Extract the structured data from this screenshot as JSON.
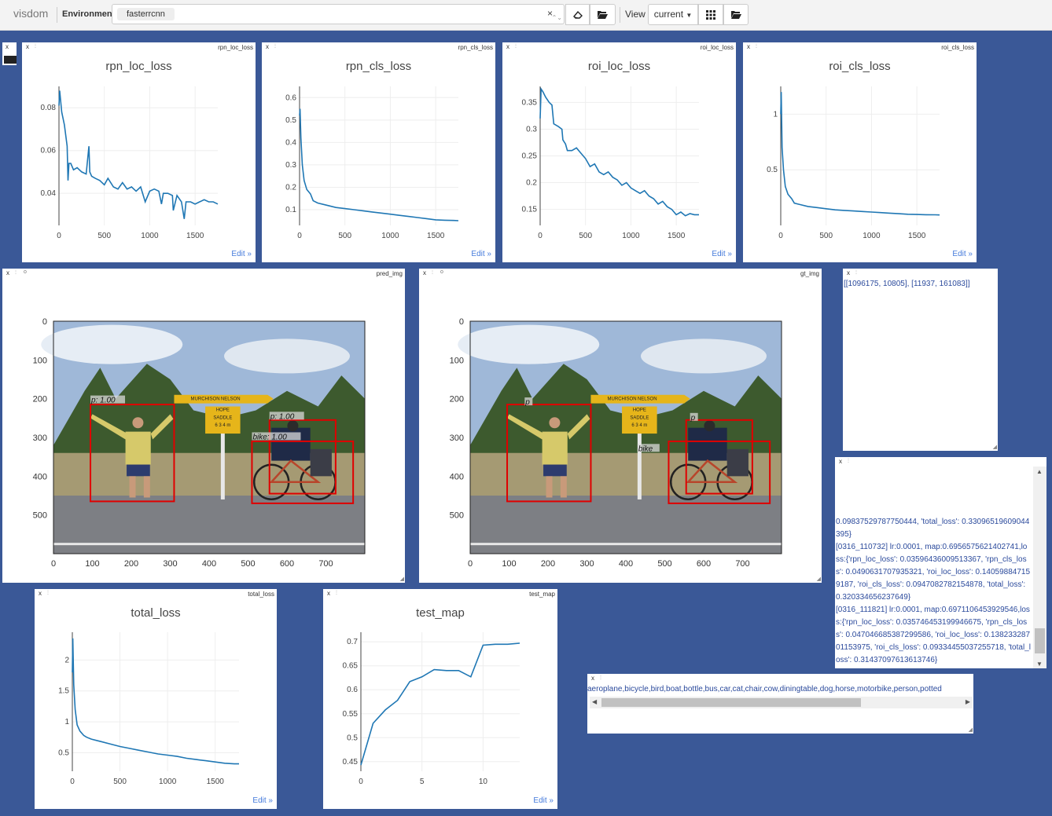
{
  "app": {
    "title": "visdom",
    "env_label": "Environment",
    "env_value": "fasterrcnn",
    "view_label": "View",
    "view_value": "current"
  },
  "icons": {
    "close": "close-icon",
    "erase": "eraser-icon",
    "folder": "folder-open-icon",
    "grid": "grid-icon",
    "chevron": "chevron-down-icon"
  },
  "colors": {
    "background": "#3a5897",
    "line": "#1f77b4",
    "text_blue": "#2b4a9c",
    "box": "#e00000"
  },
  "panes": {
    "rpn_loc": {
      "name": "rpn_loc_loss",
      "title": "rpn_loc_loss",
      "edit": "Edit »"
    },
    "rpn_cls": {
      "name": "rpn_cls_loss",
      "title": "rpn_cls_loss",
      "edit": "Edit »"
    },
    "roi_loc": {
      "name": "roi_loc_loss",
      "title": "roi_loc_loss",
      "edit": "Edit »"
    },
    "roi_cls": {
      "name": "roi_cls_loss",
      "title": "roi_cls_loss",
      "edit": "Edit »"
    },
    "pred": {
      "name": "pred_img"
    },
    "gt": {
      "name": "gt_img"
    },
    "total": {
      "name": "total_loss",
      "title": "total_loss",
      "edit": "Edit »"
    },
    "map": {
      "name": "test_map",
      "title": "test_map",
      "edit": "Edit »"
    }
  },
  "text_panes": {
    "confusion": "[[1096175, 10805], [11937, 161083]]",
    "log": "0.09837529787750444, 'total_loss': 0.33096519609044395}\n[0316_110732] lr:0.0001, map:0.6956575621402741,loss:{'rpn_loc_loss': 0.03596436009513367, 'rpn_cls_loss': 0.0490631707935321, 'roi_loc_loss': 0.140598847159187, 'roi_cls_loss': 0.0947082782154878, 'total_loss': 0.320334656237649}\n[0316_111821] lr:0.0001, map:0.6971106453929546,loss:{'rpn_loc_loss': 0.035746453199946675, 'rpn_cls_loss': 0.047046685387299586, 'roi_loc_loss': 0.13823328701153975, 'roi_cls_loss': 0.09334455037255718, 'total_loss': 0.31437097613613746}",
    "classes": "aeroplane,bicycle,bird,boat,bottle,bus,car,cat,chair,cow,diningtable,dog,horse,motorbike,person,potted"
  },
  "images": {
    "x_ticks": [
      "0",
      "100",
      "200",
      "300",
      "400",
      "500",
      "600",
      "700"
    ],
    "y_ticks": [
      "0",
      "100",
      "200",
      "300",
      "400",
      "500"
    ],
    "sign_text": [
      "NELSON",
      "MURCHISON",
      "HOPE",
      "SADDLE",
      "6 3 4 m"
    ],
    "pred_labels": [
      "p: 1.00",
      "p: 1.00",
      "bike: 1.00"
    ],
    "gt_labels": [
      "p",
      "p",
      "bike"
    ]
  },
  "chart_data": [
    {
      "type": "line",
      "title": "rpn_loc_loss",
      "xlim": [
        0,
        1750
      ],
      "ylim": [
        0.025,
        0.09
      ],
      "x_ticks": [
        0,
        500,
        1000,
        1500
      ],
      "y_ticks": [
        0.04,
        0.06,
        0.08
      ],
      "grid": true,
      "x": [
        0,
        8,
        30,
        60,
        90,
        100,
        110,
        130,
        160,
        200,
        250,
        300,
        330,
        340,
        360,
        400,
        450,
        500,
        540,
        600,
        650,
        700,
        750,
        800,
        850,
        900,
        950,
        1000,
        1050,
        1100,
        1130,
        1150,
        1200,
        1250,
        1260,
        1300,
        1350,
        1380,
        1400,
        1450,
        1500,
        1550,
        1600,
        1650,
        1700,
        1750
      ],
      "y": [
        0.081,
        0.088,
        0.078,
        0.072,
        0.062,
        0.046,
        0.054,
        0.054,
        0.051,
        0.052,
        0.05,
        0.049,
        0.062,
        0.05,
        0.048,
        0.047,
        0.046,
        0.044,
        0.047,
        0.043,
        0.042,
        0.045,
        0.042,
        0.043,
        0.041,
        0.043,
        0.036,
        0.041,
        0.042,
        0.041,
        0.035,
        0.04,
        0.04,
        0.039,
        0.032,
        0.039,
        0.036,
        0.028,
        0.036,
        0.036,
        0.035,
        0.036,
        0.037,
        0.036,
        0.036,
        0.035
      ]
    },
    {
      "type": "line",
      "title": "rpn_cls_loss",
      "xlim": [
        0,
        1750
      ],
      "ylim": [
        0.03,
        0.65
      ],
      "x_ticks": [
        0,
        500,
        1000,
        1500
      ],
      "y_ticks": [
        0.1,
        0.2,
        0.3,
        0.4,
        0.5,
        0.6
      ],
      "grid": true,
      "x": [
        0,
        5,
        15,
        30,
        50,
        80,
        120,
        150,
        200,
        300,
        400,
        500,
        600,
        700,
        800,
        900,
        1000,
        1100,
        1200,
        1300,
        1400,
        1500,
        1600,
        1700,
        1750
      ],
      "y": [
        0.52,
        0.55,
        0.42,
        0.3,
        0.23,
        0.19,
        0.17,
        0.14,
        0.13,
        0.12,
        0.11,
        0.105,
        0.1,
        0.095,
        0.09,
        0.085,
        0.08,
        0.075,
        0.07,
        0.065,
        0.06,
        0.055,
        0.053,
        0.052,
        0.051
      ]
    },
    {
      "type": "line",
      "title": "roi_loc_loss",
      "xlim": [
        0,
        1750
      ],
      "ylim": [
        0.12,
        0.38
      ],
      "x_ticks": [
        0,
        500,
        1000,
        1500
      ],
      "y_ticks": [
        0.15,
        0.2,
        0.25,
        0.3,
        0.35
      ],
      "grid": true,
      "x": [
        0,
        10,
        30,
        60,
        100,
        130,
        150,
        200,
        240,
        250,
        280,
        300,
        350,
        400,
        450,
        500,
        550,
        600,
        650,
        700,
        750,
        800,
        850,
        900,
        950,
        1000,
        1050,
        1100,
        1150,
        1200,
        1250,
        1300,
        1350,
        1400,
        1450,
        1500,
        1550,
        1600,
        1650,
        1700,
        1750
      ],
      "y": [
        0.32,
        0.375,
        0.37,
        0.36,
        0.35,
        0.345,
        0.31,
        0.305,
        0.3,
        0.28,
        0.272,
        0.26,
        0.26,
        0.265,
        0.255,
        0.245,
        0.23,
        0.235,
        0.22,
        0.215,
        0.22,
        0.21,
        0.205,
        0.195,
        0.2,
        0.19,
        0.185,
        0.18,
        0.185,
        0.175,
        0.17,
        0.16,
        0.165,
        0.155,
        0.15,
        0.14,
        0.145,
        0.138,
        0.142,
        0.14,
        0.14
      ]
    },
    {
      "type": "line",
      "title": "roi_cls_loss",
      "xlim": [
        0,
        1750
      ],
      "ylim": [
        0,
        1.25
      ],
      "x_ticks": [
        0,
        500,
        1000,
        1500
      ],
      "y_ticks": [
        0.5,
        1
      ],
      "grid": true,
      "x": [
        0,
        5,
        15,
        30,
        50,
        80,
        120,
        150,
        200,
        300,
        400,
        500,
        600,
        700,
        800,
        900,
        1000,
        1100,
        1200,
        1300,
        1400,
        1500,
        1600,
        1700,
        1750
      ],
      "y": [
        1.0,
        1.2,
        0.7,
        0.5,
        0.35,
        0.28,
        0.24,
        0.2,
        0.19,
        0.17,
        0.16,
        0.15,
        0.14,
        0.135,
        0.13,
        0.125,
        0.12,
        0.115,
        0.11,
        0.105,
        0.1,
        0.098,
        0.096,
        0.095,
        0.094
      ]
    },
    {
      "type": "line",
      "title": "total_loss",
      "xlim": [
        0,
        1750
      ],
      "ylim": [
        0.2,
        2.45
      ],
      "x_ticks": [
        0,
        500,
        1000,
        1500
      ],
      "y_ticks": [
        0.5,
        1,
        1.5,
        2
      ],
      "grid": true,
      "x": [
        0,
        5,
        15,
        30,
        50,
        80,
        120,
        150,
        200,
        300,
        400,
        500,
        600,
        700,
        800,
        900,
        1000,
        1100,
        1200,
        1300,
        1400,
        1500,
        1600,
        1700,
        1750
      ],
      "y": [
        1.8,
        2.35,
        1.6,
        1.2,
        0.95,
        0.85,
        0.78,
        0.75,
        0.72,
        0.68,
        0.64,
        0.6,
        0.57,
        0.54,
        0.51,
        0.48,
        0.46,
        0.44,
        0.41,
        0.39,
        0.37,
        0.35,
        0.33,
        0.32,
        0.32
      ]
    },
    {
      "type": "line",
      "title": "test_map",
      "xlim": [
        0,
        13
      ],
      "ylim": [
        0.43,
        0.72
      ],
      "x_ticks": [
        0,
        5,
        10
      ],
      "y_ticks": [
        0.45,
        0.5,
        0.55,
        0.6,
        0.65,
        0.7
      ],
      "grid": true,
      "x": [
        0,
        1,
        2,
        3,
        4,
        5,
        6,
        7,
        8,
        9,
        10,
        11,
        12,
        13
      ],
      "y": [
        0.443,
        0.53,
        0.558,
        0.578,
        0.617,
        0.627,
        0.642,
        0.64,
        0.64,
        0.627,
        0.693,
        0.695,
        0.695,
        0.697
      ]
    }
  ]
}
